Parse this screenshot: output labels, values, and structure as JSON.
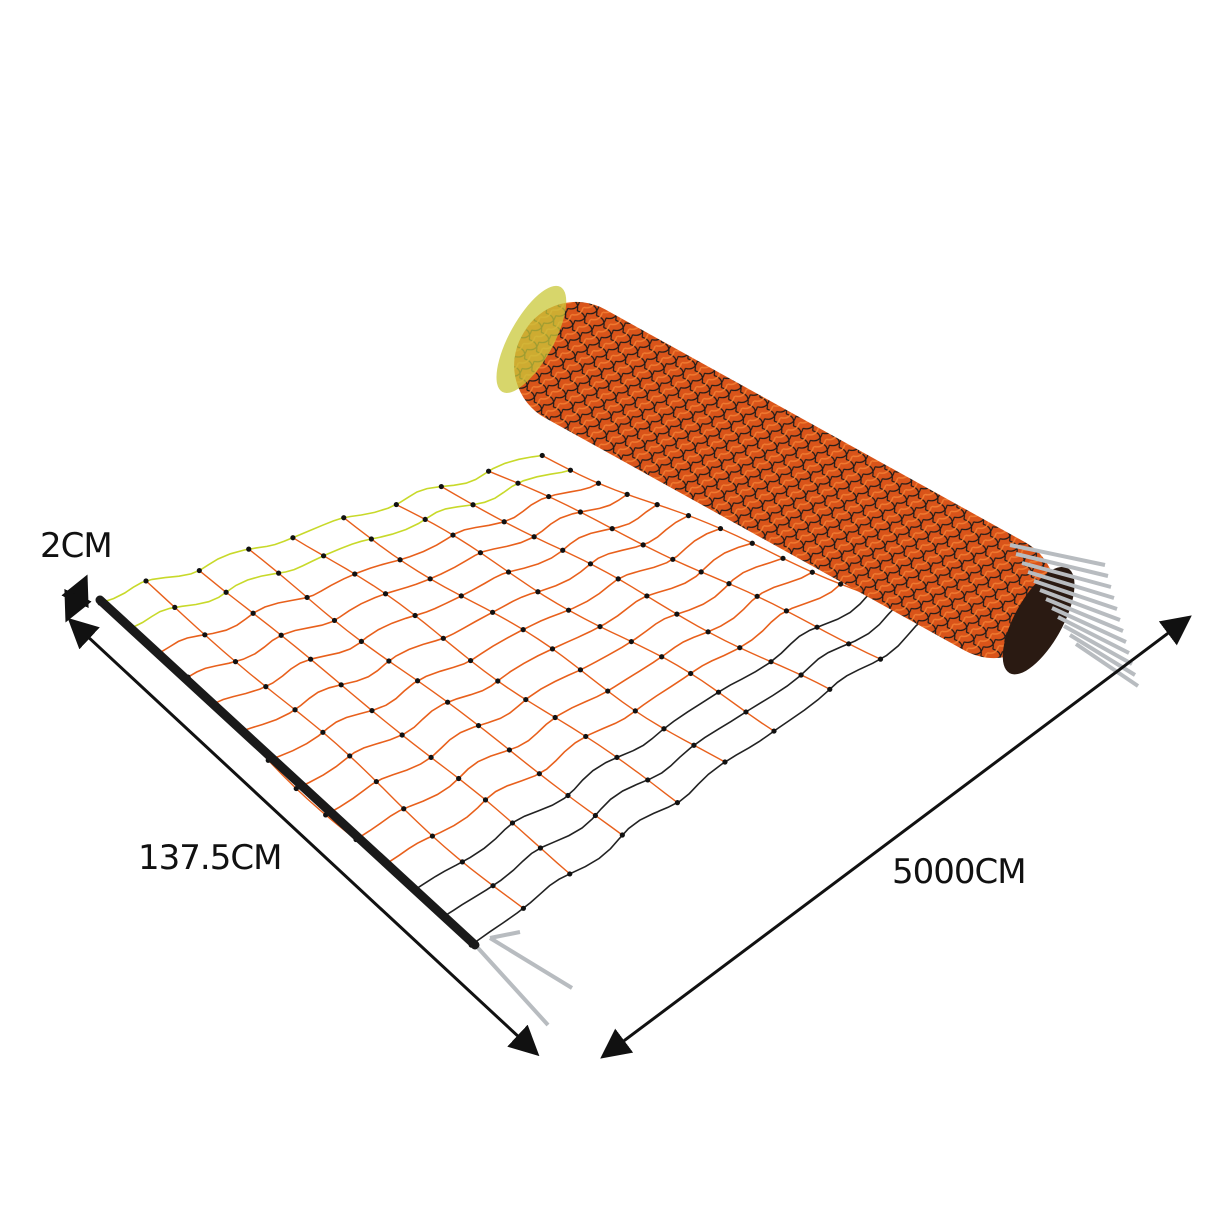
{
  "product": {
    "name": "electric fence netting roll",
    "colors": {
      "net_orange": "#e8601c",
      "net_yellow": "#c8d92a",
      "post": "#1a1a1a",
      "stake": "#b8bcc0",
      "roll": "#d9541a"
    }
  },
  "dimensions": {
    "mesh_gap": "2CM",
    "height": "137.5CM",
    "length": "5000CM"
  }
}
